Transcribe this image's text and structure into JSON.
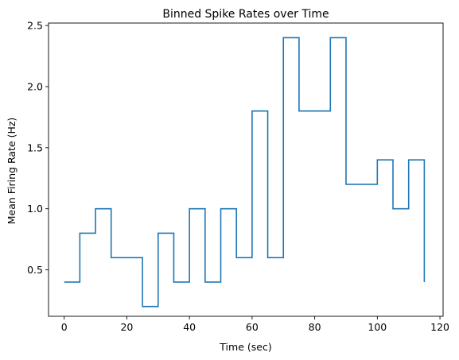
{
  "chart_data": {
    "type": "line",
    "style": "step",
    "title": "Binned Spike Rates over Time",
    "xlabel": "Time (sec)",
    "ylabel": "Mean Firing Rate (Hz)",
    "xlim": [
      -5,
      121
    ],
    "ylim": [
      0.12,
      2.52
    ],
    "xticks": [
      0,
      20,
      40,
      60,
      80,
      100,
      120
    ],
    "xtick_labels": [
      "0",
      "20",
      "40",
      "60",
      "80",
      "100",
      "120"
    ],
    "yticks": [
      0.5,
      1.0,
      1.5,
      2.0,
      2.5
    ],
    "ytick_labels": [
      "0.5",
      "1.0",
      "1.5",
      "2.0",
      "2.5"
    ],
    "grid": false,
    "series": [
      {
        "color": "#1f77b4",
        "x": [
          0,
          5,
          10,
          15,
          20,
          25,
          30,
          35,
          40,
          45,
          50,
          55,
          60,
          65,
          70,
          75,
          80,
          85,
          90,
          95,
          100,
          105,
          110,
          115
        ],
        "values": [
          0.4,
          0.8,
          1.0,
          0.6,
          0.6,
          0.2,
          0.8,
          0.4,
          1.0,
          0.4,
          1.0,
          0.6,
          1.8,
          0.6,
          2.4,
          1.8,
          1.8,
          2.4,
          1.2,
          1.2,
          1.4,
          1.0,
          1.4,
          0.4
        ]
      }
    ]
  }
}
